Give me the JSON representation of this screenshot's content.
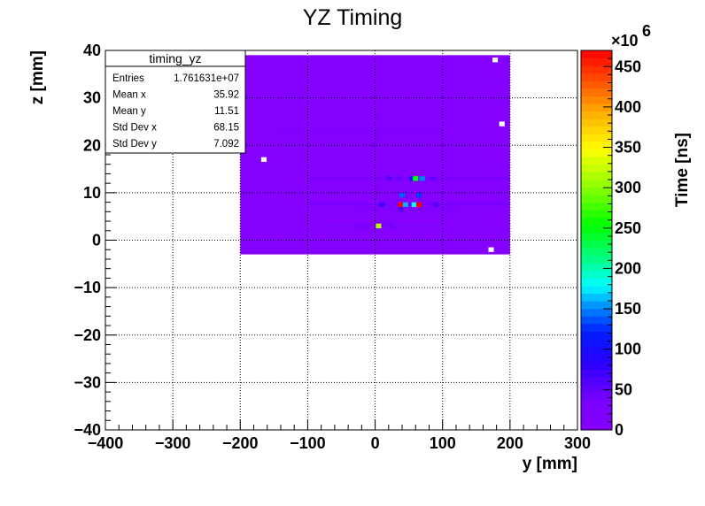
{
  "chart_data": {
    "type": "heatmap",
    "title": "YZ Timing",
    "xlabel": "y [mm]",
    "ylabel": "z [mm]",
    "zlabel": "Time [ns]",
    "zexponent_base": "×10",
    "zexponent_power": "6",
    "xlim": [
      -400,
      300
    ],
    "ylim": [
      -40,
      40
    ],
    "zlim": [
      0,
      470
    ],
    "grid": true,
    "x_ticks": [
      -400,
      -300,
      -200,
      -100,
      0,
      100,
      200,
      300
    ],
    "x_tick_labels": [
      "−400",
      "−300",
      "−200",
      "−100",
      "0",
      "100",
      "200",
      "300"
    ],
    "y_ticks": [
      -40,
      -30,
      -20,
      -10,
      0,
      10,
      20,
      30,
      40
    ],
    "y_tick_labels": [
      "−40",
      "−30",
      "−20",
      "−10",
      "0",
      "10",
      "20",
      "30",
      "40"
    ],
    "z_ticks": [
      0,
      50,
      100,
      150,
      200,
      250,
      300,
      350,
      400,
      450
    ],
    "z_tick_labels": [
      "0",
      "50",
      "100",
      "150",
      "200",
      "250",
      "300",
      "350",
      "400",
      "450"
    ],
    "fill_region": {
      "x": [
        -200,
        200
      ],
      "y": [
        -3,
        39
      ],
      "value": 3
    },
    "hot_spots": [
      {
        "y": 178,
        "z": 38,
        "value": 0
      },
      {
        "y": 188,
        "z": 24.5,
        "value": 0
      },
      {
        "y": -165,
        "z": 17,
        "value": 0
      },
      {
        "y": 172,
        "z": -2,
        "value": 0
      },
      {
        "y": 35,
        "z": 13,
        "value": 45
      },
      {
        "y": 55,
        "z": 13,
        "value": 120
      },
      {
        "y": 60,
        "z": 13,
        "value": 250
      },
      {
        "y": 70,
        "z": 13,
        "value": 150
      },
      {
        "y": 20,
        "z": 13,
        "value": 60
      },
      {
        "y": 85,
        "z": 13,
        "value": 50
      },
      {
        "y": 40,
        "z": 9.5,
        "value": 140
      },
      {
        "y": 65,
        "z": 9.5,
        "value": 130
      },
      {
        "y": 38,
        "z": 7.5,
        "value": 470
      },
      {
        "y": 45,
        "z": 7.5,
        "value": 160
      },
      {
        "y": 58,
        "z": 7.5,
        "value": 180
      },
      {
        "y": 65,
        "z": 7.5,
        "value": 470
      },
      {
        "y": 10,
        "z": 7.5,
        "value": 70
      },
      {
        "y": 90,
        "z": 7.5,
        "value": 60
      },
      {
        "y": 38,
        "z": 6.5,
        "value": 55
      },
      {
        "y": 5,
        "z": 3,
        "value": 320
      },
      {
        "y": -20,
        "z": 3,
        "value": 40
      },
      {
        "y": 25,
        "z": 3,
        "value": 45
      }
    ],
    "streaks": [
      {
        "z": 13,
        "y0": -100,
        "y1": 200,
        "value": 25
      },
      {
        "z": 11.5,
        "y0": -60,
        "y1": 140,
        "value": 15
      },
      {
        "z": 7.5,
        "y0": -100,
        "y1": 200,
        "value": 30
      },
      {
        "z": 6.5,
        "y0": -30,
        "y1": 120,
        "value": 18
      },
      {
        "z": 3,
        "y0": -80,
        "y1": 100,
        "value": 22
      },
      {
        "z": 26,
        "y0": -20,
        "y1": 130,
        "value": 15
      },
      {
        "z": 23,
        "y0": -150,
        "y1": 100,
        "value": 18
      },
      {
        "z": 21.5,
        "y0": -120,
        "y1": 70,
        "value": 12
      },
      {
        "z": 33,
        "y0": 60,
        "y1": 110,
        "value": 12
      },
      {
        "z": 18,
        "y0": -90,
        "y1": -30,
        "value": 10
      }
    ]
  },
  "stats_box": {
    "title": "timing_yz",
    "rows": [
      {
        "label": "Entries",
        "value": "1.761631e+07"
      },
      {
        "label": "Mean x",
        "value": "35.92"
      },
      {
        "label": "Mean y",
        "value": "11.51"
      },
      {
        "label": "Std Dev x",
        "value": "68.15"
      },
      {
        "label": "Std Dev y",
        "value": "7.092"
      }
    ]
  },
  "colors": {
    "background": "#ffffff",
    "frame": "#000000",
    "empty_bin": "#ffffff"
  }
}
